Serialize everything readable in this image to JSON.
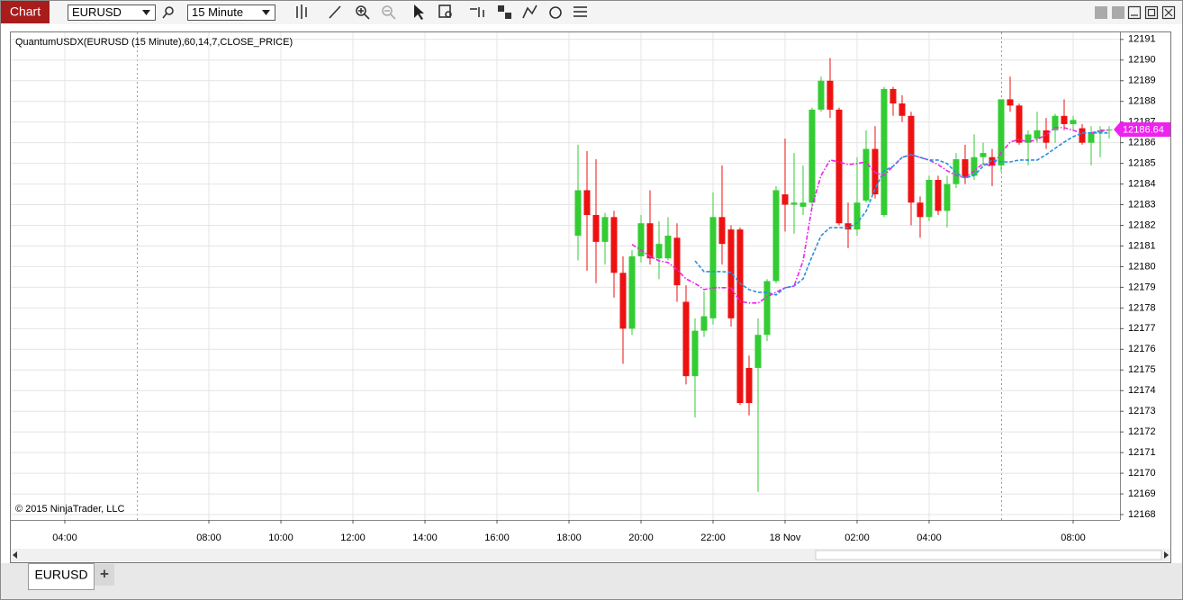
{
  "toolbar": {
    "button": "Chart",
    "instrument": "EURUSD",
    "interval": "15 Minute"
  },
  "tabs": {
    "items": [
      "EURUSD"
    ],
    "add": "+"
  },
  "chart_data": {
    "type": "candlestick",
    "indicator_label": "QuantumUSDX(EURUSD (15 Minute),60,14,7,CLOSE_PRICE)",
    "copyright": "© 2015 NinjaTrader, LLC",
    "up_color": "#33cc33",
    "down_color": "#ee1111",
    "xlim": [
      2.5,
      33.3
    ],
    "xticks": [
      {
        "value": 4,
        "label": "04:00"
      },
      {
        "value": 8,
        "label": "08:00"
      },
      {
        "value": 10,
        "label": "10:00"
      },
      {
        "value": 12,
        "label": "12:00"
      },
      {
        "value": 14,
        "label": "14:00"
      },
      {
        "value": 16,
        "label": "16:00"
      },
      {
        "value": 18,
        "label": "18:00"
      },
      {
        "value": 20,
        "label": "20:00"
      },
      {
        "value": 22,
        "label": "22:00"
      },
      {
        "value": 24,
        "label": "18 Nov"
      },
      {
        "value": 26,
        "label": "02:00"
      },
      {
        "value": 28,
        "label": "04:00"
      },
      {
        "value": 32,
        "label": "08:00"
      }
    ],
    "ylim": [
      12167.74,
      12191.34
    ],
    "yticks": [
      12168,
      12169,
      12170,
      12171,
      12172,
      12173,
      12174,
      12175,
      12176,
      12177,
      12178,
      12179,
      12180,
      12181,
      12182,
      12183,
      12184,
      12185,
      12186,
      12187,
      12188,
      12189,
      12190,
      12191
    ],
    "grid": true,
    "x": [
      18.25,
      18.5,
      18.75,
      19,
      19.25,
      19.5,
      19.75,
      20,
      20.25,
      20.5,
      20.75,
      21,
      21.25,
      21.5,
      21.75,
      22,
      22.25,
      22.5,
      22.75,
      23,
      23.25,
      23.5,
      23.75,
      24,
      24.25,
      24.5,
      24.75,
      25,
      25.25,
      25.5,
      25.75,
      26,
      26.25,
      26.5,
      26.75,
      27,
      27.25,
      27.5,
      27.75,
      28,
      28.25,
      28.5,
      28.75,
      29,
      29.25,
      29.5,
      29.75,
      30,
      30.25,
      30.5,
      30.75,
      31,
      31.25,
      31.5,
      31.75,
      32,
      32.25,
      32.5,
      32.75,
      33
    ],
    "open": [
      12181.5,
      12183.7,
      12182.5,
      12181.2,
      12182.4,
      12179.7,
      12177.0,
      12180.5,
      12182.1,
      12180.4,
      12180.4,
      12181.4,
      12178.3,
      12174.7,
      12176.9,
      12177.5,
      12182.4,
      12181.8,
      12181.8,
      12175.1,
      12175.1,
      12176.7,
      12179.3,
      12183.5,
      12183.0,
      12182.9,
      12183.1,
      12187.6,
      12189.0,
      12187.6,
      12182.1,
      12181.8,
      12183.2,
      12185.7,
      12182.5,
      12188.6,
      12187.9,
      12187.3,
      12183.1,
      12182.4,
      12184.2,
      12182.7,
      12184.0,
      12185.2,
      12184.4,
      12185.3,
      12185.3,
      12184.9,
      12188.1,
      12187.8,
      12186.0,
      12186.2,
      12186.6,
      12186.6,
      12187.3,
      12186.9,
      12186.7,
      12186.0,
      12186.5,
      12186.6
    ],
    "high": [
      12185.9,
      12185.6,
      12185.2,
      12182.6,
      12182.7,
      12180.5,
      12180.8,
      12182.5,
      12183.7,
      12182.2,
      12182.4,
      12182.1,
      12179.1,
      12177.5,
      12178.8,
      12183.6,
      12184.9,
      12182.0,
      12181.9,
      12175.7,
      12177.5,
      12179.4,
      12183.9,
      12186.2,
      12185.5,
      12184.9,
      12187.7,
      12189.2,
      12190.1,
      12187.7,
      12183.1,
      12185.3,
      12186.6,
      12186.8,
      12188.7,
      12188.7,
      12188.3,
      12187.5,
      12183.4,
      12184.4,
      12184.4,
      12184.4,
      12185.5,
      12185.9,
      12186.4,
      12186.0,
      12185.7,
      12188.1,
      12189.2,
      12187.9,
      12186.6,
      12187.5,
      12187.2,
      12187.4,
      12188.1,
      12187.3,
      12186.9,
      12186.8,
      12186.8,
      12186.8
    ],
    "low": [
      12180.3,
      12179.8,
      12179.2,
      12180.1,
      12178.5,
      12175.3,
      12176.7,
      12180.2,
      12180.1,
      12179.4,
      12180.3,
      12178.3,
      12174.3,
      12172.7,
      12176.6,
      12177.2,
      12180.1,
      12177.1,
      12173.3,
      12172.8,
      12169.1,
      12176.4,
      12179.2,
      12181.7,
      12181.6,
      12182.5,
      12182.9,
      12187.5,
      12187.2,
      12182.0,
      12180.9,
      12181.5,
      12183.1,
      12183.3,
      12182.4,
      12187.3,
      12187.0,
      12182.0,
      12181.4,
      12182.2,
      12182.5,
      12181.9,
      12183.8,
      12184.0,
      12184.2,
      12184.9,
      12183.9,
      12184.6,
      12187.5,
      12185.9,
      12184.9,
      12186.0,
      12185.7,
      12186.0,
      12186.6,
      12186.6,
      12185.9,
      12184.9,
      12185.3,
      12186.2
    ],
    "close": [
      12183.7,
      12182.5,
      12181.2,
      12182.4,
      12179.7,
      12177.0,
      12180.5,
      12182.1,
      12180.4,
      12181.1,
      12181.5,
      12179.1,
      12174.7,
      12176.9,
      12177.6,
      12182.4,
      12181.1,
      12177.5,
      12173.4,
      12173.4,
      12176.7,
      12179.3,
      12183.7,
      12183.0,
      12183.1,
      12183.1,
      12187.6,
      12189.0,
      12187.6,
      12182.1,
      12181.8,
      12183.1,
      12185.7,
      12183.5,
      12188.6,
      12187.9,
      12187.3,
      12183.1,
      12182.4,
      12184.2,
      12182.7,
      12184.0,
      12185.2,
      12184.3,
      12185.3,
      12185.5,
      12184.9,
      12188.1,
      12187.8,
      12186.0,
      12186.4,
      12186.6,
      12186.0,
      12187.3,
      12186.9,
      12187.1,
      12186.0,
      12186.5,
      12186.6,
      12186.64
    ],
    "series": [
      {
        "color": "#ee22ee",
        "values": [
          null,
          null,
          null,
          null,
          null,
          null,
          12181.07,
          12180.8,
          12180.5,
          12180.28,
          12180.2,
          12179.85,
          12179.41,
          12179.19,
          12178.89,
          12178.98,
          12178.98,
          12178.98,
          12178.32,
          12178.24,
          12178.24,
          12178.54,
          12178.76,
          12178.98,
          12179.06,
          12180.28,
          12182.9,
          12184.42,
          12185.16,
          12185.07,
          12184.94,
          12184.99,
          12185.07,
          12184.55,
          12184.42,
          12184.86,
          12185.29,
          12185.42,
          12185.29,
          12185.16,
          12184.94,
          12184.64,
          12184.42,
          12184.29,
          12184.64,
          12184.99,
          12184.86,
          12185.51,
          12186.03,
          12186.16,
          12186.03,
          12186.16,
          12186.38,
          12186.73,
          12186.73,
          12186.6,
          12186.47,
          12186.47,
          12186.6,
          12186.6
        ]
      },
      {
        "color": "#2a8fe0",
        "values": [
          null,
          null,
          null,
          null,
          null,
          null,
          null,
          null,
          null,
          null,
          null,
          null,
          null,
          12180.28,
          12179.76,
          12179.76,
          12179.76,
          12179.72,
          12179.19,
          12178.89,
          12178.76,
          12178.76,
          12178.63,
          12178.98,
          12179.06,
          12179.41,
          12180.5,
          12181.5,
          12181.89,
          12181.89,
          12181.89,
          12182.11,
          12182.68,
          12183.77,
          12184.64,
          12184.86,
          12185.29,
          12185.42,
          12185.29,
          12185.16,
          12185.16,
          12184.99,
          12184.55,
          12184.29,
          12184.42,
          12184.86,
          12185.16,
          12185.07,
          12185.07,
          12185.16,
          12185.16,
          12185.16,
          12185.42,
          12185.73,
          12186.03,
          12186.29,
          12186.47,
          12186.47,
          12186.47,
          12186.47
        ]
      }
    ],
    "marker_color": "#ee22ee"
  }
}
